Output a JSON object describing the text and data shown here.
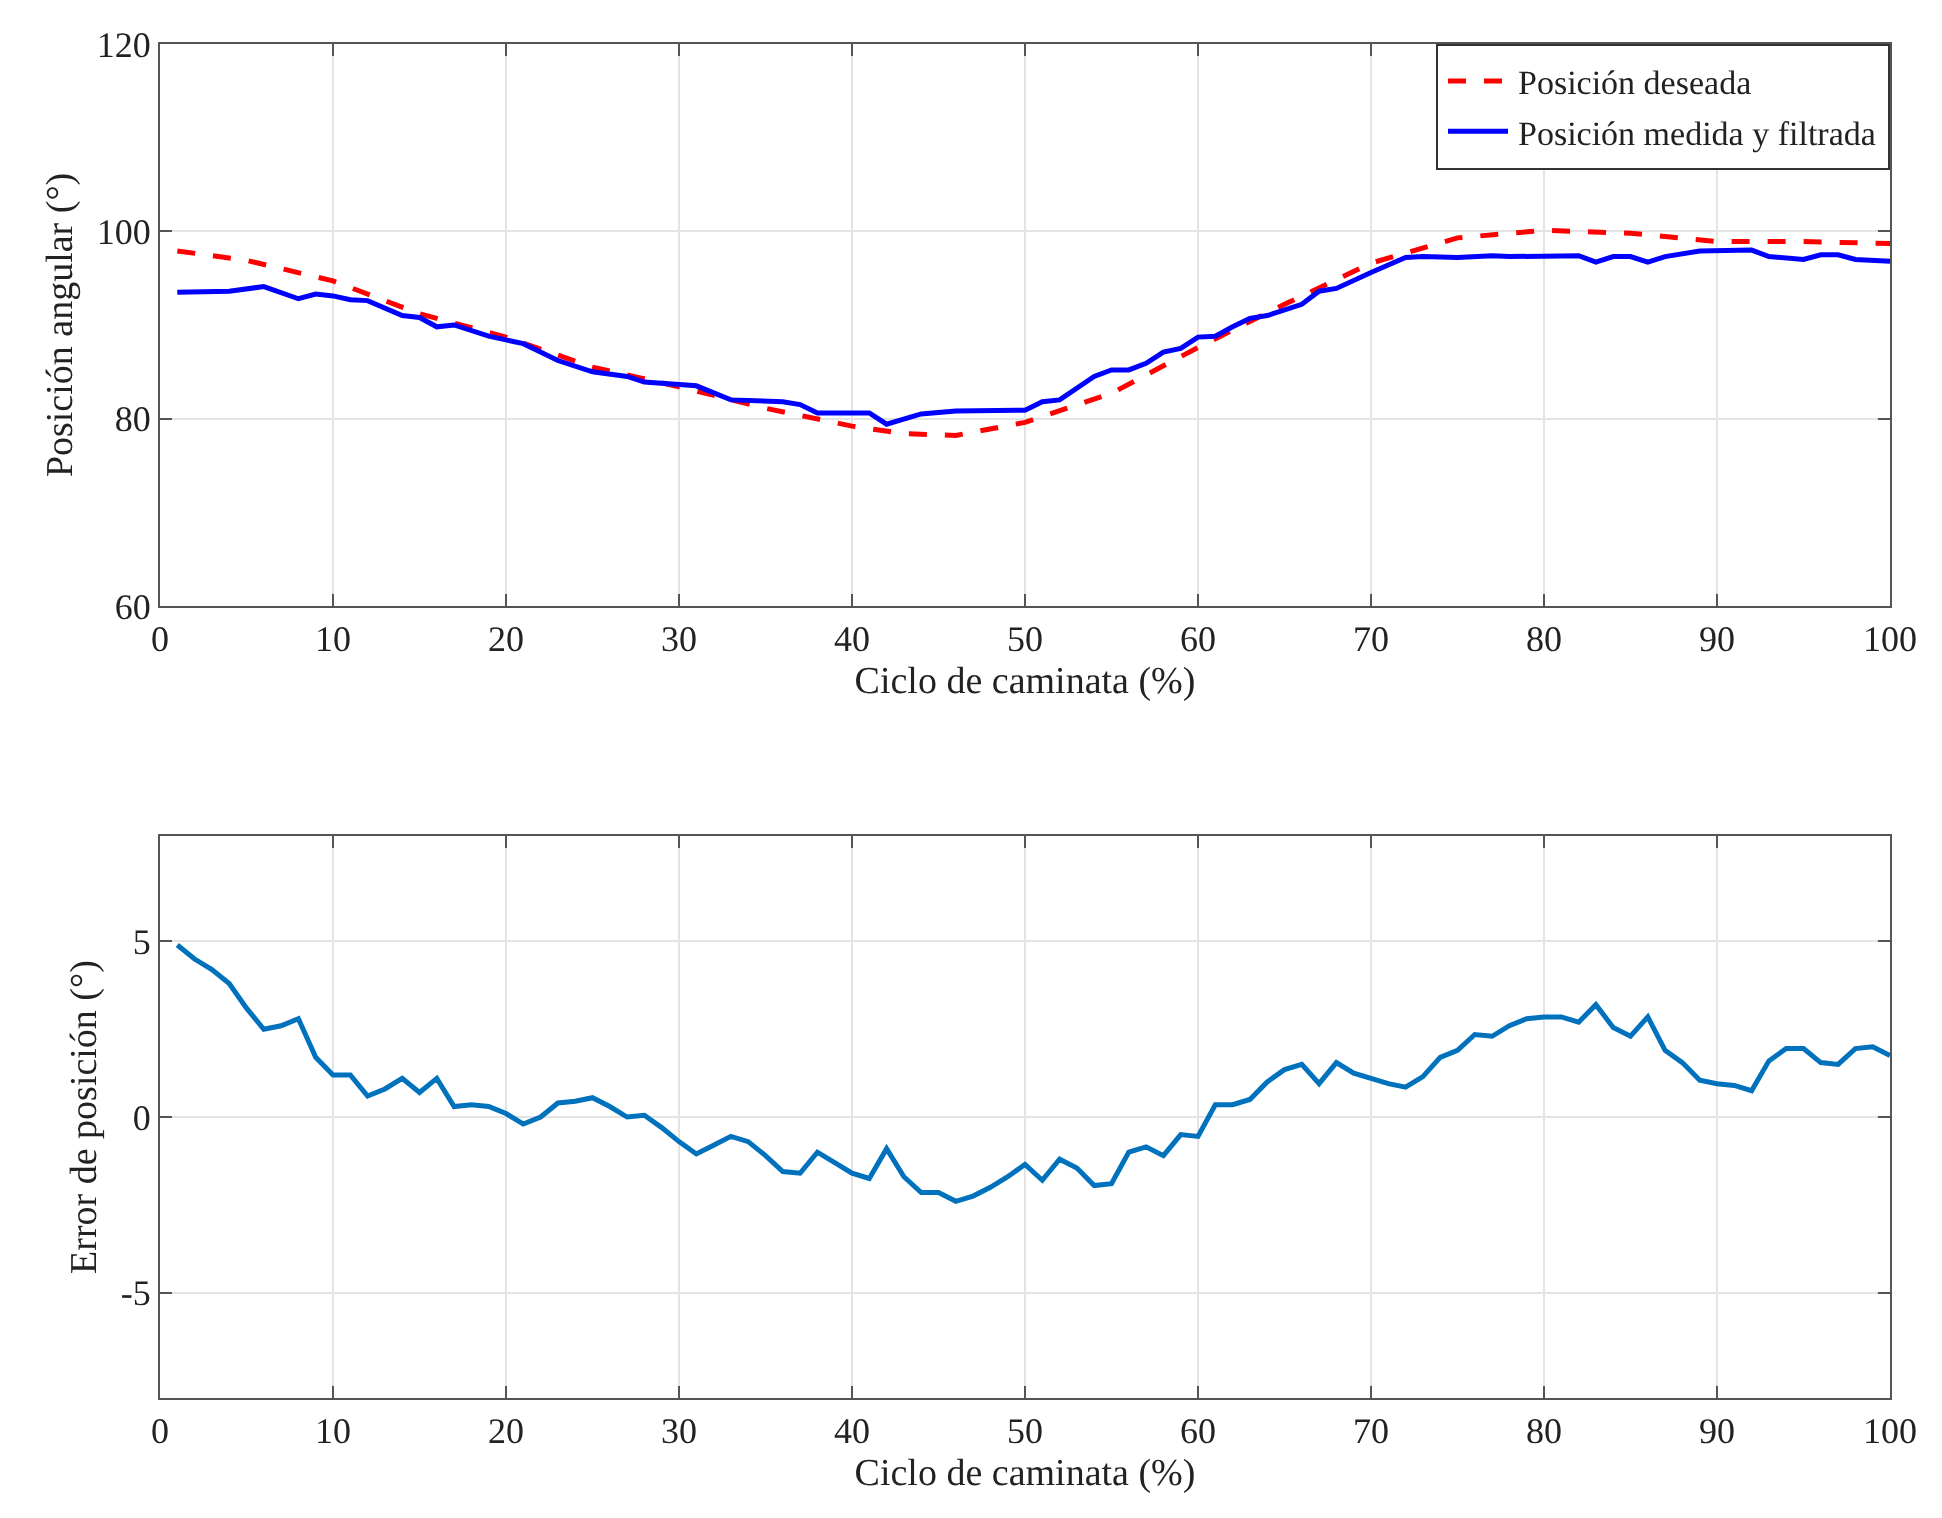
{
  "chart_data": [
    {
      "type": "line",
      "xlabel": "Ciclo de caminata (%)",
      "ylabel": "Posición angular (°)",
      "xlim": [
        0,
        100
      ],
      "xticks": [
        0,
        10,
        20,
        30,
        40,
        50,
        60,
        70,
        80,
        90,
        100
      ],
      "ylim": [
        60,
        120
      ],
      "yticks": [
        60,
        80,
        100,
        120
      ],
      "grid": true,
      "legend": "top right",
      "series": [
        {
          "name": "Posición deseada",
          "color": "#ff0000",
          "line_style": "dashed",
          "x": [
            1,
            5,
            10,
            15,
            20,
            25,
            30,
            35,
            40,
            43,
            46,
            50,
            55,
            60,
            65,
            70,
            75,
            80,
            85,
            90,
            95,
            100
          ],
          "values": [
            97.9,
            96.9,
            94.7,
            91.2,
            88.7,
            85.5,
            83.4,
            81.1,
            79.2,
            78.4,
            78.2,
            79.6,
            82.7,
            87.6,
            92.2,
            96.6,
            99.3,
            100.1,
            99.8,
            98.9,
            98.9,
            98.7
          ]
        },
        {
          "name": "Posición medida y filtrada",
          "color": "#0000ff",
          "line_style": "solid",
          "x": [
            1,
            4,
            6,
            8,
            9,
            10,
            11,
            12,
            14,
            15,
            16,
            17,
            19,
            21,
            23,
            25,
            27,
            28,
            31,
            33,
            36,
            37,
            38,
            41,
            42,
            44,
            46,
            50,
            51,
            52,
            54,
            55,
            56,
            57,
            58,
            59,
            60,
            61,
            62,
            63,
            64,
            66,
            67,
            68,
            70,
            72,
            73,
            75,
            77,
            78,
            82,
            83,
            84,
            85,
            86,
            87,
            89,
            92,
            93,
            95,
            96,
            97,
            98,
            100
          ],
          "values": [
            93.5,
            93.6,
            94.1,
            92.8,
            93.3,
            93.1,
            92.7,
            92.6,
            91.0,
            90.8,
            89.8,
            90.0,
            88.8,
            88.0,
            86.2,
            85.0,
            84.5,
            83.9,
            83.5,
            82.0,
            81.8,
            81.5,
            80.6,
            80.6,
            79.4,
            80.5,
            80.8,
            80.9,
            81.8,
            82.0,
            84.5,
            85.2,
            85.2,
            85.9,
            87.1,
            87.5,
            88.7,
            88.8,
            89.8,
            90.7,
            91.0,
            92.2,
            93.6,
            93.9,
            95.6,
            97.2,
            97.3,
            97.2,
            97.4,
            97.3,
            97.4,
            96.7,
            97.3,
            97.3,
            96.7,
            97.3,
            97.9,
            98.0,
            97.3,
            97.0,
            97.5,
            97.5,
            97.0,
            96.8
          ]
        }
      ]
    },
    {
      "type": "line",
      "xlabel": "Ciclo de caminata (%)",
      "ylabel": "Error de posición (°)",
      "xlim": [
        0,
        100
      ],
      "xticks": [
        0,
        10,
        20,
        30,
        40,
        50,
        60,
        70,
        80,
        90,
        100
      ],
      "ylim": [
        -8,
        8
      ],
      "yticks": [
        -5,
        0,
        5
      ],
      "grid": true,
      "series": [
        {
          "color": "#0072bd",
          "line_style": "solid",
          "x": [
            1,
            2,
            3,
            4,
            5,
            6,
            7,
            8,
            9,
            10,
            11,
            12,
            13,
            14,
            15,
            16,
            17,
            18,
            19,
            20,
            21,
            22,
            23,
            24,
            25,
            26,
            27,
            28,
            29,
            30,
            31,
            32,
            33,
            34,
            35,
            36,
            37,
            38,
            39,
            40,
            41,
            42,
            43,
            44,
            45,
            46,
            47,
            48,
            49,
            50,
            51,
            52,
            53,
            54,
            55,
            56,
            57,
            58,
            59,
            60,
            61,
            62,
            63,
            64,
            65,
            66,
            67,
            68,
            69,
            70,
            71,
            72,
            73,
            74,
            75,
            76,
            77,
            78,
            79,
            80,
            81,
            82,
            83,
            84,
            85,
            86,
            87,
            88,
            89,
            90,
            91,
            92,
            93,
            94,
            95,
            96,
            97,
            98,
            99,
            100
          ],
          "values": [
            4.9,
            4.5,
            4.2,
            3.8,
            3.1,
            2.5,
            2.6,
            2.8,
            1.7,
            1.2,
            1.2,
            0.6,
            0.8,
            1.1,
            0.7,
            1.1,
            0.3,
            0.35,
            0.3,
            0.1,
            -0.2,
            0.0,
            0.4,
            0.45,
            0.55,
            0.3,
            0.0,
            0.05,
            -0.3,
            -0.7,
            -1.05,
            -0.8,
            -0.55,
            -0.7,
            -1.1,
            -1.55,
            -1.6,
            -1.0,
            -1.3,
            -1.6,
            -1.75,
            -0.9,
            -1.7,
            -2.15,
            -2.15,
            -2.4,
            -2.25,
            -2.0,
            -1.7,
            -1.35,
            -1.8,
            -1.2,
            -1.45,
            -1.95,
            -1.9,
            -1.0,
            -0.85,
            -1.1,
            -0.5,
            -0.55,
            0.35,
            0.35,
            0.5,
            1.0,
            1.35,
            1.5,
            0.95,
            1.55,
            1.25,
            1.1,
            0.95,
            0.85,
            1.15,
            1.7,
            1.9,
            2.35,
            2.3,
            2.6,
            2.8,
            2.85,
            2.85,
            2.7,
            3.2,
            2.55,
            2.3,
            2.85,
            1.9,
            1.55,
            1.05,
            0.95,
            0.9,
            0.75,
            1.6,
            1.95,
            1.95,
            1.55,
            1.5,
            1.95,
            2.0,
            1.75
          ]
        }
      ]
    }
  ]
}
